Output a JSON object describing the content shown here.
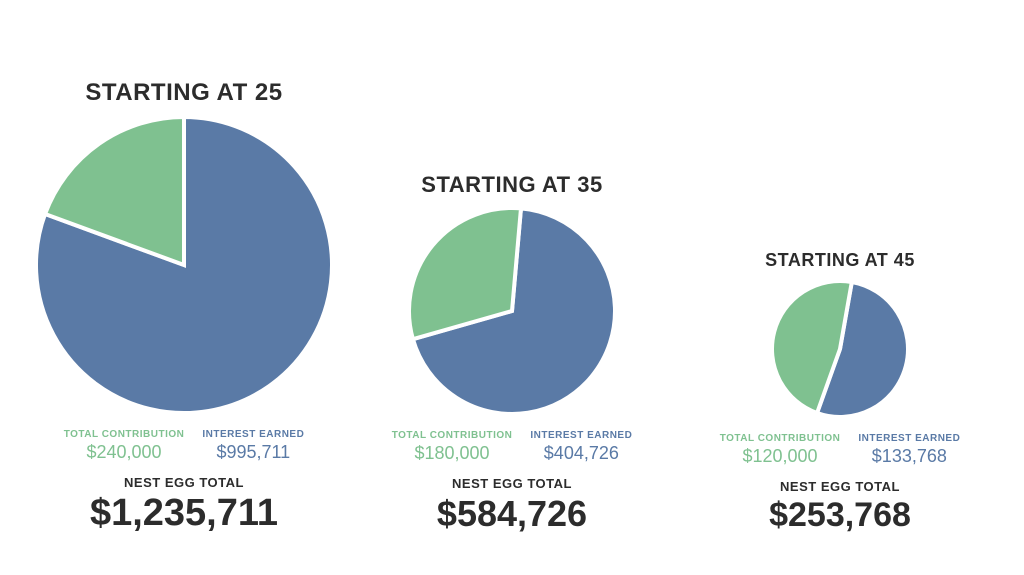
{
  "background_color": "#ffffff",
  "colors": {
    "contribution": "#7fc190",
    "interest": "#5a7aa6",
    "slice_stroke": "#ffffff",
    "text_dark": "#2c2c2c"
  },
  "legend": {
    "contribution_label": "TOTAL CONTRIBUTION",
    "interest_label": "INTEREST EARNED",
    "total_label": "NEST EGG TOTAL"
  },
  "panels": [
    {
      "id": "age25",
      "title": "STARTING AT 25",
      "title_fontsize": 24,
      "pie_diameter": 300,
      "contribution_pct": 19.4,
      "contribution_value": "$240,000",
      "interest_value": "$995,711",
      "total_value": "$1,235,711",
      "total_fontsize": 38,
      "start_angle_deg": -90
    },
    {
      "id": "age35",
      "title": "STARTING AT 35",
      "title_fontsize": 22,
      "pie_diameter": 210,
      "contribution_pct": 30.8,
      "contribution_value": "$180,000",
      "interest_value": "$404,726",
      "total_value": "$584,726",
      "total_fontsize": 36,
      "start_angle_deg": -85
    },
    {
      "id": "age45",
      "title": "STARTING AT 45",
      "title_fontsize": 18,
      "pie_diameter": 140,
      "contribution_pct": 47.3,
      "contribution_value": "$120,000",
      "interest_value": "$133,768",
      "total_value": "$253,768",
      "total_fontsize": 34,
      "start_angle_deg": -80
    }
  ],
  "slice_stroke_width": 4
}
